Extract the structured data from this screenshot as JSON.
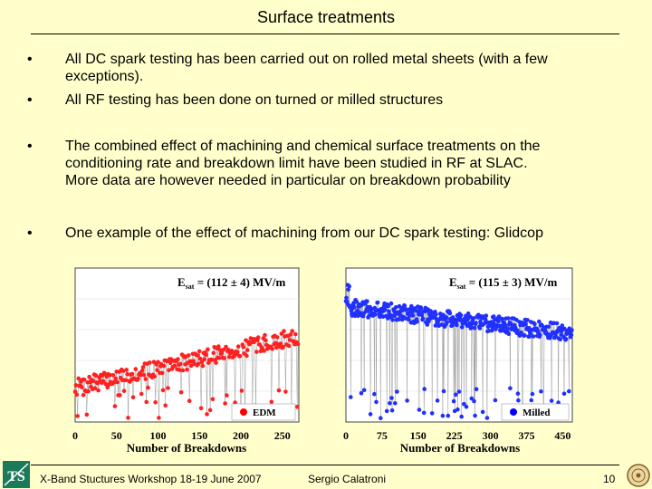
{
  "slide": {
    "title": "Surface treatments",
    "bullets": [
      {
        "lines": [
          "All DC spark testing has been carried out on rolled metal sheets (with a few",
          "exceptions)."
        ]
      },
      {
        "lines": [
          "All RF testing has been done on turned or milled structures"
        ]
      },
      {
        "lines": [
          "The combined effect of machining and chemical surface treatments on the",
          "conditioning rate and breakdown limit have been studied in RF at SLAC.",
          "More data are however needed in particular on breakdown probability"
        ]
      },
      {
        "lines": [
          "One example of the effect of machining from our DC spark testing: Glidcop"
        ]
      }
    ],
    "bullet_symbol": "•"
  },
  "footer": {
    "event": "X-Band Stuctures Workshop 18-19 June 2007",
    "author": "Sergio Calatroni",
    "page": "10",
    "logo_text": "TS"
  },
  "chart_data": [
    {
      "type": "scatter",
      "xlabel": "Number of Breakdowns",
      "ylabel": "",
      "xticks": [
        "0",
        "50",
        "100",
        "150",
        "200",
        "250"
      ],
      "xlim": [
        0,
        270
      ],
      "ylim": [
        0,
        200
      ],
      "annotation": {
        "prefix": "E",
        "sub": "sat",
        "value": " = (112 ± 4) MV/m"
      },
      "legend": {
        "label": "EDM",
        "position": "bottom-right",
        "color": "#ff0000"
      },
      "series_color": "#ff2020",
      "pattern": {
        "start_level": 45,
        "end_level": 112,
        "count": 270
      }
    },
    {
      "type": "scatter",
      "xlabel": "Number of Breakdowns",
      "ylabel": "",
      "xticks": [
        "0",
        "75",
        "150",
        "225",
        "300",
        "375",
        "450"
      ],
      "xlim": [
        0,
        470
      ],
      "ylim": [
        0,
        200
      ],
      "annotation": {
        "prefix": "E",
        "sub": "sat",
        "value": " = (115 ± 3) MV/m"
      },
      "legend": {
        "label": "Milled",
        "position": "bottom-right",
        "color": "#0000ff"
      },
      "series_color": "#2030ff",
      "pattern": {
        "start_level": 150,
        "end_level": 115,
        "count": 470
      }
    }
  ]
}
